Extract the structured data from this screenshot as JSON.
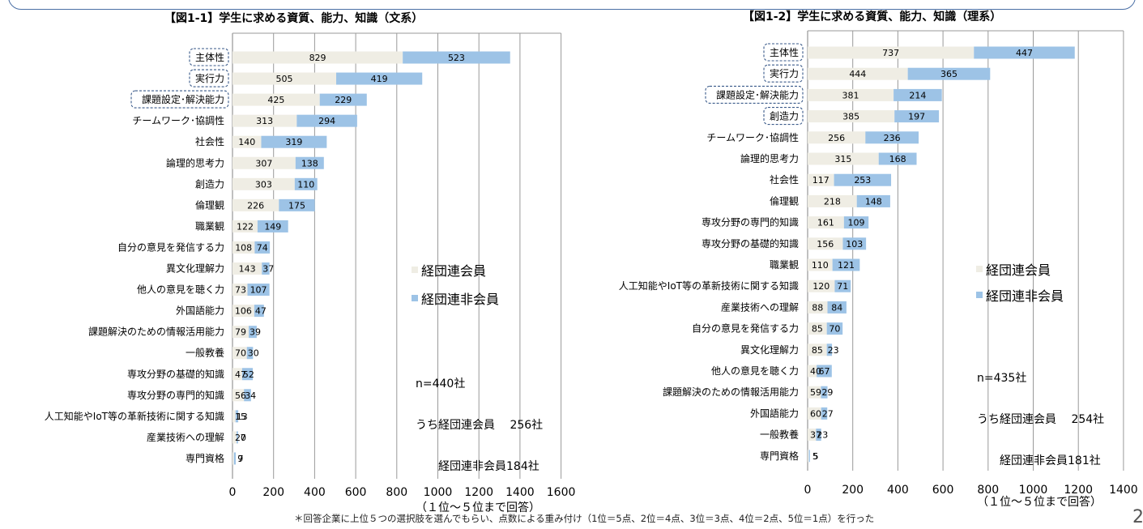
{
  "footnote": "＊回答企業に上位５つの選択肢を選んでもらい、点数による重み付け（1位＝5点、2位＝4点、3位＝3点、4位＝2点、5位＝1点）を行った",
  "page_number": "2",
  "colors": {
    "member": "#efede4",
    "nonmember": "#9dc3e6",
    "highlight_border": "#3a5a8a"
  },
  "chart_data": [
    {
      "type": "bar",
      "orientation": "horizontal",
      "stacked": true,
      "title": "【図1-1】学生に求める資質、能力、知識（文系）",
      "categories": [
        "主体性",
        "実行力",
        "課題設定･解決能力",
        "チームワーク･協調性",
        "社会性",
        "論理的思考力",
        "創造力",
        "倫理観",
        "職業観",
        "自分の意見を発信する力",
        "異文化理解力",
        "他人の意見を聴く力",
        "外国語能力",
        "課題解決のための情報活用能力",
        "一般教養",
        "専攻分野の基礎的知識",
        "専攻分野の専門的知識",
        "人工知能やIoT等の革新技術に関する知識",
        "産業技術への理解",
        "専門資格"
      ],
      "highlighted": [
        "主体性",
        "実行力",
        "課題設定･解決能力"
      ],
      "series": [
        {
          "name": "経団連会員",
          "values": [
            829,
            505,
            425,
            313,
            140,
            307,
            303,
            226,
            122,
            108,
            143,
            73,
            106,
            79,
            70,
            47,
            56,
            15,
            20,
            7
          ]
        },
        {
          "name": "経団連非会員",
          "values": [
            523,
            419,
            229,
            294,
            319,
            138,
            110,
            175,
            149,
            74,
            37,
            107,
            47,
            39,
            30,
            52,
            34,
            13,
            7,
            9
          ]
        }
      ],
      "data_labels": [
        [
          "829",
          "505",
          "425",
          "313",
          "140",
          "307",
          "303",
          "226",
          "122",
          "108",
          "143",
          "73",
          "106",
          "79",
          "70",
          "47",
          "56",
          "15",
          "20",
          "7"
        ],
        [
          "523",
          "419",
          "229",
          "294",
          "319",
          "138",
          "110",
          "175",
          "149",
          "74",
          "37",
          "107",
          "47",
          "39",
          "30",
          "52",
          "34",
          "13",
          "7",
          "9"
        ]
      ],
      "xlim": [
        0,
        1600
      ],
      "xticks": [
        0,
        200,
        400,
        600,
        800,
        1000,
        1200,
        1400,
        1600
      ],
      "grid": true,
      "legend": "right",
      "note_lines": [
        "n=440社",
        "うち経団連会員　 256社",
        "　　経団連非会員184社",
        "（１位～５位まで回答）"
      ]
    },
    {
      "type": "bar",
      "orientation": "horizontal",
      "stacked": true,
      "title": "【図1-2】学生に求める資質、能力、知識（理系）",
      "categories": [
        "主体性",
        "実行力",
        "課題設定･解決能力",
        "創造力",
        "チームワーク･協調性",
        "論理的思考力",
        "社会性",
        "倫理観",
        "専攻分野の専門的知識",
        "専攻分野の基礎的知識",
        "職業観",
        "人工知能やIoT等の革新技術に関する知識",
        "産業技術への理解",
        "自分の意見を発信する力",
        "異文化理解力",
        "他人の意見を聴く力",
        "課題解決のための情報活用能力",
        "外国語能力",
        "一般教養",
        "専門資格"
      ],
      "highlighted": [
        "主体性",
        "実行力",
        "課題設定･解決能力",
        "創造力"
      ],
      "series": [
        {
          "name": "経団連会員",
          "values": [
            737,
            444,
            381,
            385,
            256,
            315,
            117,
            218,
            161,
            156,
            110,
            120,
            88,
            85,
            85,
            40,
            59,
            60,
            37,
            5
          ]
        },
        {
          "name": "経団連非会員",
          "values": [
            447,
            365,
            214,
            197,
            236,
            168,
            253,
            148,
            109,
            103,
            121,
            71,
            84,
            70,
            23,
            67,
            29,
            27,
            23,
            5
          ]
        }
      ],
      "data_labels": [
        [
          "737",
          "444",
          "381",
          "385",
          "256",
          "315",
          "117",
          "218",
          "161",
          "156",
          "110",
          "120",
          "88",
          "85",
          "85",
          "40",
          "59",
          "60",
          "37",
          "5"
        ],
        [
          "447",
          "365",
          "214",
          "197",
          "236",
          "168",
          "253",
          "148",
          "109",
          "103",
          "121",
          "71",
          "84",
          "70",
          "23",
          "67",
          "29",
          "27",
          "23",
          "5"
        ]
      ],
      "xlim": [
        0,
        1400
      ],
      "xticks": [
        0,
        200,
        400,
        600,
        800,
        1000,
        1200,
        1400
      ],
      "grid": true,
      "legend": "right",
      "note_lines": [
        "n=435社",
        "うち経団連会員　 254社",
        "　　経団連非会員181社",
        "（１位～５位まで回答）"
      ]
    }
  ]
}
